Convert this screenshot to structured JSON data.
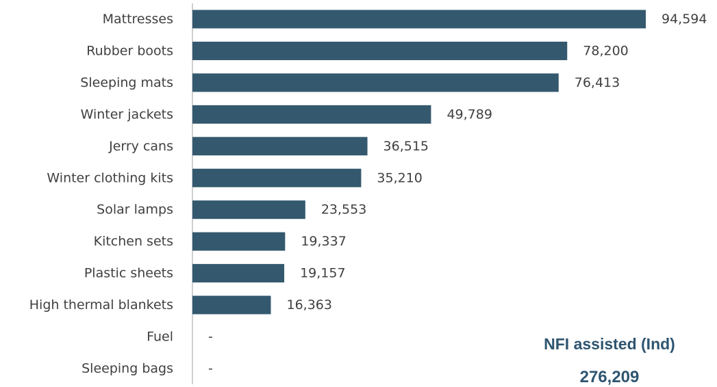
{
  "chart_data": {
    "type": "bar",
    "orientation": "horizontal",
    "categories": [
      "Mattresses",
      "Rubber boots",
      "Sleeping mats",
      "Winter jackets",
      "Jerry cans",
      "Winter clothing kits",
      "Solar lamps",
      "Kitchen sets",
      "Plastic sheets",
      "High thermal blankets",
      "Fuel",
      "Sleeping bags"
    ],
    "values": [
      94594,
      78200,
      76413,
      49789,
      36515,
      35210,
      23553,
      19337,
      19157,
      16363,
      null,
      null
    ],
    "value_labels": [
      "94,594",
      "78,200",
      "76,413",
      "49,789",
      "36,515",
      "35,210",
      "23,553",
      "19,337",
      "19,157",
      "16,363",
      "-",
      "-"
    ],
    "xlim": [
      0,
      94594
    ],
    "grid": false,
    "bar_color": "#34596e"
  },
  "summary": {
    "title": "NFI assisted (Ind)",
    "value": "276,209",
    "color": "#2e5570"
  }
}
